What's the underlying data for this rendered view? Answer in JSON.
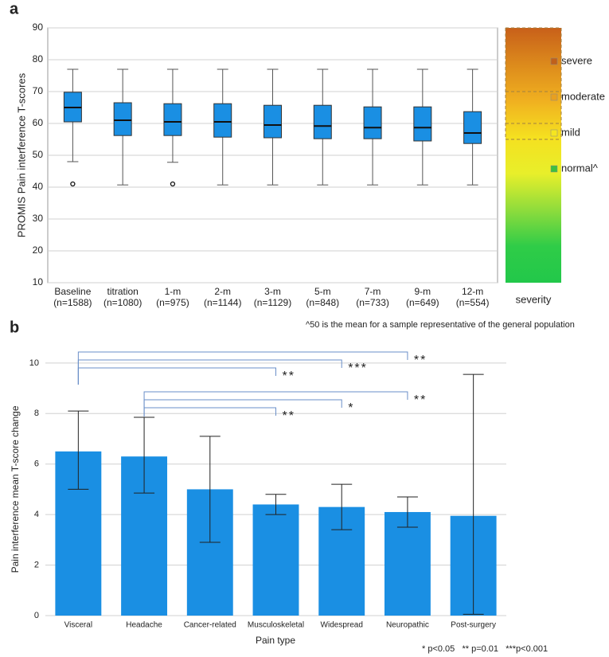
{
  "chart_data": [
    {
      "type": "box",
      "panel": "a",
      "y_label": "PROMIS Pain interference T-scores",
      "categories": [
        "Baseline",
        "titration",
        "1-m",
        "2-m",
        "3-m",
        "5-m",
        "7-m",
        "9-m",
        "12-m"
      ],
      "n_labels": [
        "(n=1588)",
        "(n=1080)",
        "(n=975)",
        "(n=1144)",
        "(n=1129)",
        "(n=848)",
        "(n=733)",
        "(n=649)",
        "(n=554)"
      ],
      "whisker_low": [
        48,
        40.7,
        47.8,
        40.7,
        40.7,
        40.7,
        40.7,
        40.7,
        40.7
      ],
      "q1": [
        60.5,
        56.2,
        56.2,
        55.7,
        55.5,
        55.2,
        55.2,
        54.5,
        53.7
      ],
      "median": [
        65,
        61,
        60.5,
        60.5,
        59.5,
        59.2,
        58.7,
        58.7,
        57
      ],
      "q3": [
        69.8,
        66.5,
        66.2,
        66.2,
        65.7,
        65.7,
        65.2,
        65.2,
        63.7
      ],
      "whisker_high": [
        77,
        77,
        77,
        77,
        77,
        77,
        77,
        77,
        77
      ],
      "outliers": [
        [
          41
        ],
        [],
        [
          41
        ],
        [],
        [],
        [],
        [],
        [],
        []
      ],
      "color": "#1a8fe3",
      "ylim": [
        10,
        90
      ],
      "yticks": [
        10,
        20,
        30,
        40,
        50,
        60,
        70,
        80,
        90
      ],
      "grid": true,
      "severity_label": "severity",
      "severity_gradient": [
        "#22c84a",
        "#2fcc48",
        "#8fdc3c",
        "#e8ef2a",
        "#f5e020",
        "#f0b020",
        "#dc8a1c",
        "#c8601a"
      ],
      "severity_cutoffs": [
        55,
        60,
        70,
        90
      ],
      "severity_legend": [
        {
          "name": "severe",
          "color": "#c0601a"
        },
        {
          "name": "moderate",
          "color": "#e8a020"
        },
        {
          "name": "mild",
          "color": "#f5e620"
        },
        {
          "name": "normal^",
          "color": "#3cc040"
        }
      ],
      "footnote": "^50 is the mean for a sample representative of the general population"
    },
    {
      "type": "bar",
      "panel": "b",
      "y_label": "Pain interference mean  T-score change",
      "x_label": "Pain type",
      "categories": [
        "Visceral",
        "Headache",
        "Cancer-related",
        "Musculoskeletal",
        "Widespread",
        "Neuropathic",
        "Post-surgery"
      ],
      "values": [
        6.5,
        6.3,
        5.0,
        4.4,
        4.3,
        4.1,
        3.95
      ],
      "ci_low": [
        5.0,
        4.85,
        2.9,
        4.0,
        3.4,
        3.5,
        0.05
      ],
      "ci_high": [
        8.1,
        7.85,
        7.1,
        4.8,
        5.2,
        4.7,
        9.55
      ],
      "color": "#1a8fe3",
      "ylim": [
        0,
        10.5
      ],
      "yticks": [
        0,
        2,
        4,
        6,
        8,
        10
      ],
      "grid": true,
      "comparisons": [
        {
          "from": "Visceral",
          "to": "Musculoskeletal",
          "label": "**"
        },
        {
          "from": "Visceral",
          "to": "Widespread",
          "label": "***"
        },
        {
          "from": "Visceral",
          "to": "Neuropathic",
          "label": "**"
        },
        {
          "from": "Headache",
          "to": "Musculoskeletal",
          "label": "**"
        },
        {
          "from": "Headache",
          "to": "Widespread",
          "label": "*"
        },
        {
          "from": "Headache",
          "to": "Neuropathic",
          "label": "**"
        }
      ],
      "footnote": "* p<0.05   ** p=0.01   ***p<0.001"
    }
  ]
}
